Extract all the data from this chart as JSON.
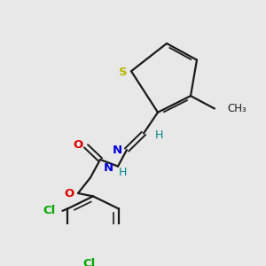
{
  "bg_color": "#e8e8e8",
  "bond_color": "#1a1a1a",
  "S_color": "#b8b800",
  "N_color": "#0000dd",
  "O_color": "#dd0000",
  "Cl_color": "#00aa00",
  "H_color": "#008888",
  "CH3_color": "#1a1a1a",
  "figsize": [
    3.0,
    3.0
  ],
  "dpi": 100,
  "xlim": [
    0,
    300
  ],
  "ylim": [
    0,
    300
  ]
}
